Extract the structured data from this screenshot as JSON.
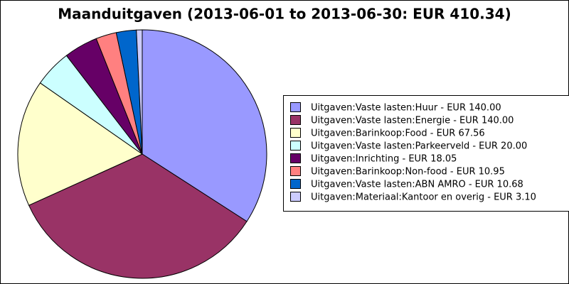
{
  "chart_data": {
    "type": "pie",
    "title": "Maanduitgaven (2013-06-01 to 2013-06-30: EUR 410.34)",
    "categories": [
      "Uitgaven:Vaste lasten:Huur - EUR 140.00",
      "Uitgaven:Vaste lasten:Energie - EUR 140.00",
      "Uitgaven:Barinkoop:Food - EUR 67.56",
      "Uitgaven:Vaste lasten:Parkeerveld - EUR 20.00",
      "Uitgaven:Inrichting - EUR 18.05",
      "Uitgaven:Barinkoop:Non-food - EUR 10.95",
      "Uitgaven:Vaste lasten:ABN AMRO - EUR 10.68",
      "Uitgaven:Materiaal:Kantoor en overig - EUR 3.10"
    ],
    "values": [
      140.0,
      140.0,
      67.56,
      20.0,
      18.05,
      10.95,
      10.68,
      3.1
    ],
    "colors": [
      "#9999ff",
      "#993366",
      "#ffffcc",
      "#ccffff",
      "#660066",
      "#ff8080",
      "#0066cc",
      "#ccccff"
    ],
    "legend": "right"
  }
}
